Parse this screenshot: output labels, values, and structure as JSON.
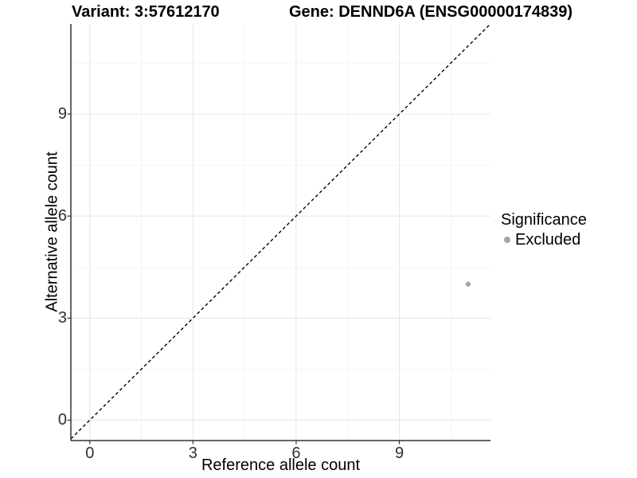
{
  "header": {
    "variant_title": "Variant: 3:57612170",
    "gene_title": "Gene: DENND6A (ENSG00000174839)"
  },
  "axes": {
    "x_label": "Reference allele count",
    "y_label": "Alternative allele count"
  },
  "legend": {
    "title": "Significance",
    "items": [
      {
        "label": "Excluded",
        "color": "#a6a6a6"
      }
    ]
  },
  "chart_data": {
    "type": "scatter",
    "title_left": "Variant: 3:57612170",
    "title_right": "Gene: DENND6A (ENSG00000174839)",
    "xlabel": "Reference allele count",
    "ylabel": "Alternative allele count",
    "x_ticks": [
      0,
      3,
      6,
      9
    ],
    "y_ticks": [
      0,
      3,
      6,
      9
    ],
    "xlim": [
      -0.55,
      11.65
    ],
    "ylim": [
      -0.6,
      11.65
    ],
    "grid": "major and minor gridlines",
    "legend_position": "right",
    "legend_title": "Significance",
    "series": [
      {
        "name": "Excluded",
        "color": "#a6a6a6",
        "points": [
          {
            "x": 11,
            "y": 4
          }
        ]
      }
    ],
    "reference_line": {
      "type": "identity y=x",
      "style": "dashed",
      "color": "#000000"
    },
    "style_colors": {
      "grid_major": "#e6e6e6",
      "grid_minor": "#f2f2f2",
      "axis_line": "#333333",
      "tick_text": "#303030"
    }
  }
}
